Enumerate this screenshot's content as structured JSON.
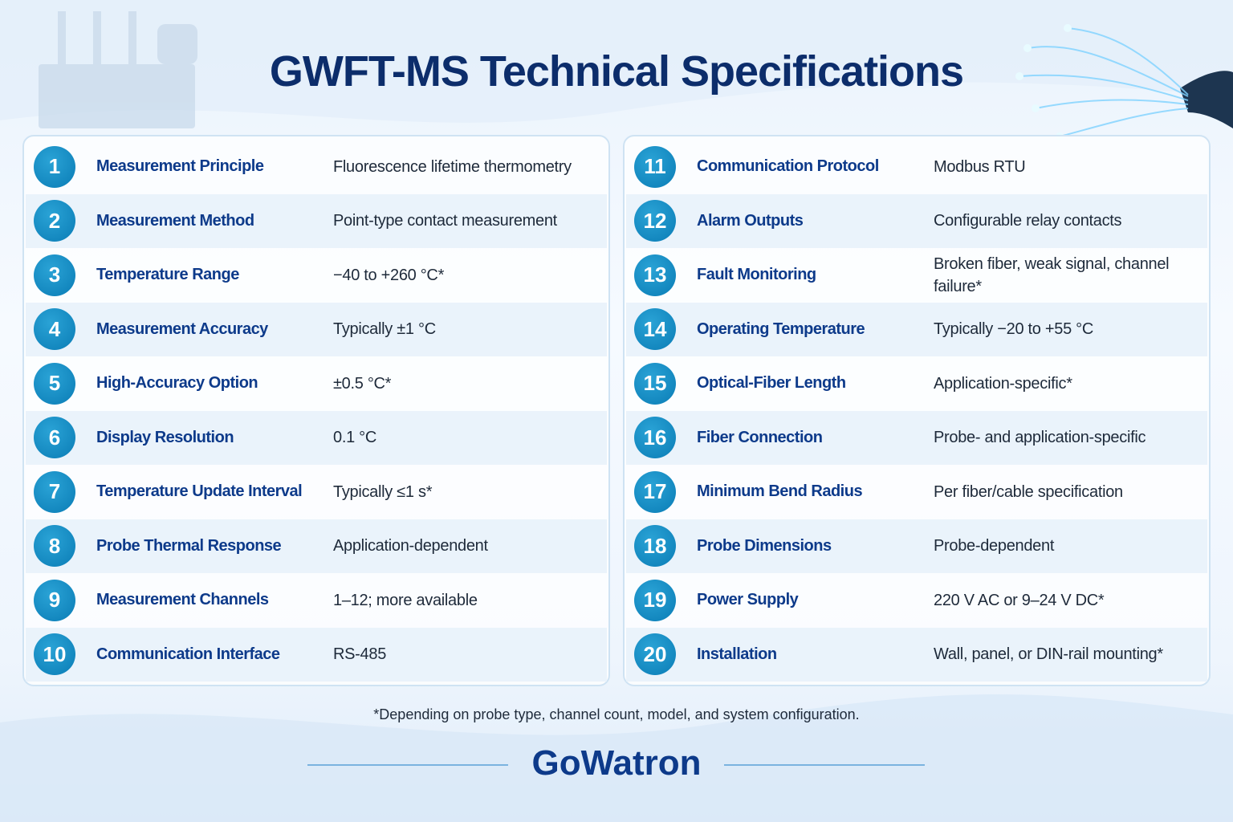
{
  "title": "GWFT-MS Technical Specifications",
  "columns": [
    {
      "rows": [
        {
          "number": 1,
          "label": "Measurement Principle",
          "value": "Fluorescence lifetime thermometry"
        },
        {
          "number": 2,
          "label": "Measurement Method",
          "value": "Point-type contact measurement"
        },
        {
          "number": 3,
          "label": "Temperature Range",
          "value": "−40 to +260 °C*"
        },
        {
          "number": 4,
          "label": "Measurement Accuracy",
          "value": "Typically ±1 °C"
        },
        {
          "number": 5,
          "label": "High-Accuracy Option",
          "value": "±0.5 °C*"
        },
        {
          "number": 6,
          "label": "Display Resolution",
          "value": "0.1 °C"
        },
        {
          "number": 7,
          "label": "Temperature Update Interval",
          "value": "Typically ≤1 s*"
        },
        {
          "number": 8,
          "label": "Probe Thermal Response",
          "value": "Application-dependent"
        },
        {
          "number": 9,
          "label": "Measurement Channels",
          "value": "1–12; more available"
        },
        {
          "number": 10,
          "label": "Communication Interface",
          "value": "RS-485"
        }
      ]
    },
    {
      "rows": [
        {
          "number": 11,
          "label": "Communication Protocol",
          "value": "Modbus RTU"
        },
        {
          "number": 12,
          "label": "Alarm Outputs",
          "value": "Configurable relay contacts"
        },
        {
          "number": 13,
          "label": "Fault Monitoring",
          "value": "Broken fiber, weak signal, channel failure*"
        },
        {
          "number": 14,
          "label": "Operating Temperature",
          "value": "Typically −20 to +55 °C"
        },
        {
          "number": 15,
          "label": "Optical-Fiber Length",
          "value": "Application-specific*"
        },
        {
          "number": 16,
          "label": "Fiber Connection",
          "value": "Probe- and application-specific"
        },
        {
          "number": 17,
          "label": "Minimum Bend Radius",
          "value": "Per fiber/cable specification"
        },
        {
          "number": 18,
          "label": "Probe Dimensions",
          "value": "Probe-dependent"
        },
        {
          "number": 19,
          "label": "Power Supply",
          "value": "220 V AC or 9–24 V DC*"
        },
        {
          "number": 20,
          "label": "Installation",
          "value": "Wall, panel, or DIN-rail mounting*"
        }
      ]
    }
  ],
  "footnote": "*Depending on probe type, channel count, model, and system configuration.",
  "brand": "GoWatron"
}
